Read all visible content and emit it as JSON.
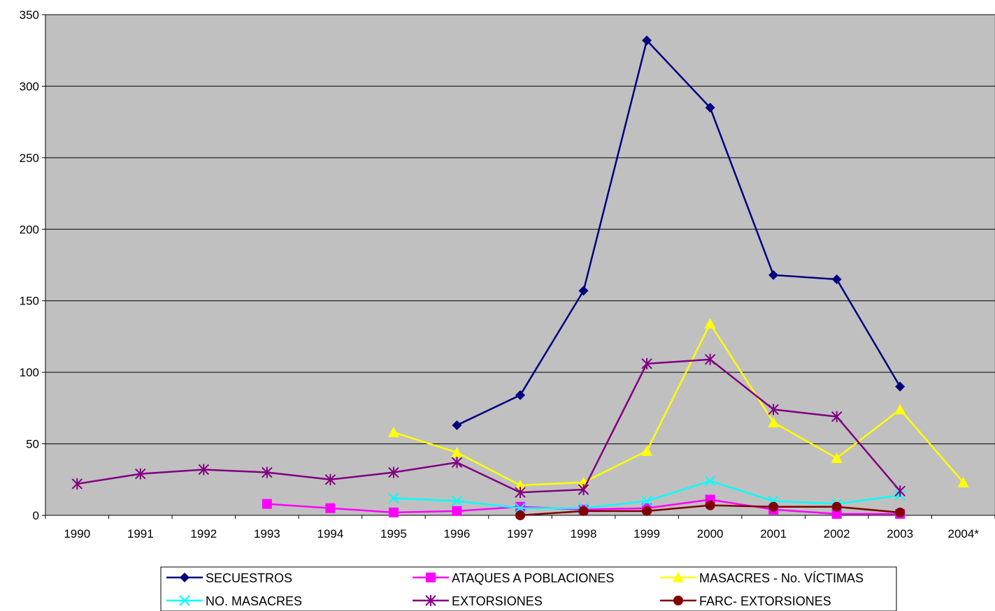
{
  "chart_data": {
    "type": "line",
    "title": "",
    "xlabel": "",
    "ylabel": "",
    "ylim": [
      0,
      350
    ],
    "yticks": [
      0,
      50,
      100,
      150,
      200,
      250,
      300,
      350
    ],
    "categories": [
      "1990",
      "1991",
      "1992",
      "1993",
      "1994",
      "1995",
      "1996",
      "1997",
      "1998",
      "1999",
      "2000",
      "2001",
      "2002",
      "2003",
      "2004*"
    ],
    "grid": "horizontal",
    "plot_background": "#C0C0C0",
    "legend_position": "bottom",
    "series": [
      {
        "name": "SECUESTROS",
        "color": "#000080",
        "marker": "diamond",
        "values": [
          null,
          null,
          null,
          null,
          null,
          null,
          63,
          84,
          157,
          332,
          285,
          168,
          165,
          90,
          null
        ]
      },
      {
        "name": "ATAQUES A POBLACIONES",
        "color": "#FF00FF",
        "marker": "square",
        "values": [
          null,
          null,
          null,
          8,
          5,
          2,
          3,
          6,
          4,
          5,
          11,
          4,
          1,
          1,
          null
        ]
      },
      {
        "name": "MASACRES - No. VÍCTIMAS",
        "color": "#FFFF00",
        "marker": "triangle",
        "values": [
          null,
          null,
          null,
          null,
          null,
          58,
          44,
          21,
          23,
          45,
          134,
          65,
          40,
          74,
          23
        ]
      },
      {
        "name": "NO. MASACRES",
        "color": "#00FFFF",
        "marker": "x",
        "values": [
          null,
          null,
          null,
          null,
          null,
          12,
          10,
          5,
          5,
          10,
          24,
          10,
          8,
          14,
          null
        ]
      },
      {
        "name": "EXTORSIONES",
        "color": "#800080",
        "marker": "asterisk",
        "values": [
          22,
          29,
          32,
          30,
          25,
          30,
          37,
          16,
          18,
          106,
          109,
          74,
          69,
          17,
          null
        ]
      },
      {
        "name": "FARC- EXTORSIONES",
        "color": "#800000",
        "marker": "circle",
        "values": [
          null,
          null,
          null,
          null,
          null,
          null,
          null,
          0,
          3,
          3,
          7,
          6,
          6,
          2,
          null
        ]
      }
    ]
  }
}
